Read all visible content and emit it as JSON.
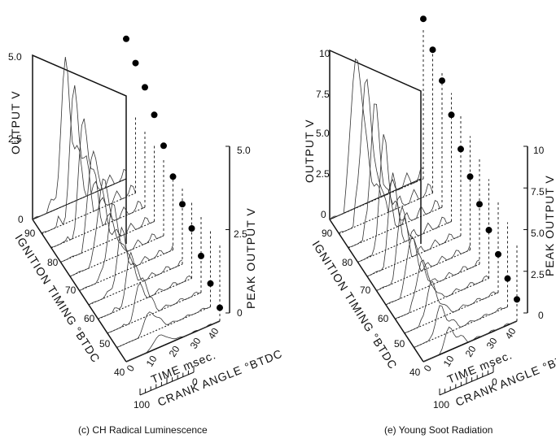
{
  "chart_data": [
    {
      "type": "line",
      "panel": "c",
      "title": "(c) CH Radical Luminescence",
      "y_axis": {
        "label": "OUTPUT V",
        "ticks": [
          "0",
          "2.5",
          "5.0"
        ],
        "range": [
          0,
          5.0
        ]
      },
      "ignition_axis": {
        "label": "IGNITION TIMING °BTDC",
        "ticks": [
          "90",
          "80",
          "70",
          "60",
          "50",
          "40"
        ]
      },
      "time_axis": {
        "label": "TIME msec.",
        "ticks": [
          "0",
          "10",
          "20",
          "30",
          "40"
        ],
        "range": [
          0,
          40
        ]
      },
      "crank_axis": {
        "label": "CRANK ANGLE °BTDC",
        "ticks": [
          "100",
          "0"
        ]
      },
      "peak_axis": {
        "label": "PEAK OUTPUT V",
        "ticks": [
          "0",
          "2.5",
          "5.0"
        ],
        "range": [
          0,
          5.0
        ]
      },
      "ignition_timings": [
        90,
        85,
        80,
        75,
        70,
        65,
        60,
        55,
        50,
        45,
        40
      ],
      "peak_outputs": [
        4.2,
        3.9,
        3.6,
        3.2,
        2.7,
        2.2,
        1.8,
        1.5,
        1.1,
        0.7,
        0.4
      ]
    },
    {
      "type": "line",
      "panel": "e",
      "title": "(e) Young Soot Radiation",
      "y_axis": {
        "label": "OUTPUT V",
        "ticks": [
          "0",
          "2.5",
          "5.0",
          "7.5",
          "10"
        ],
        "range": [
          0,
          10
        ]
      },
      "ignition_axis": {
        "label": "IGNITION TIMING °BTDC",
        "ticks": [
          "90",
          "80",
          "70",
          "60",
          "50",
          "40"
        ]
      },
      "time_axis": {
        "label": "TIME msec.",
        "ticks": [
          "0",
          "10",
          "20",
          "30",
          "40"
        ],
        "range": [
          0,
          40
        ]
      },
      "crank_axis": {
        "label": "CRANK ANGLE °BTDC",
        "ticks": [
          "100",
          "0"
        ]
      },
      "peak_axis": {
        "label": "PEAK OUTPUT V",
        "ticks": [
          "0",
          "2.5",
          "5.0",
          "7.5",
          "10"
        ],
        "range": [
          0,
          10
        ]
      },
      "ignition_timings": [
        90,
        85,
        80,
        75,
        70,
        65,
        60,
        55,
        50,
        45,
        40
      ],
      "peak_outputs": [
        9.6,
        8.6,
        7.6,
        6.4,
        5.2,
        4.4,
        3.6,
        2.9,
        2.3,
        1.7,
        1.3
      ]
    }
  ]
}
